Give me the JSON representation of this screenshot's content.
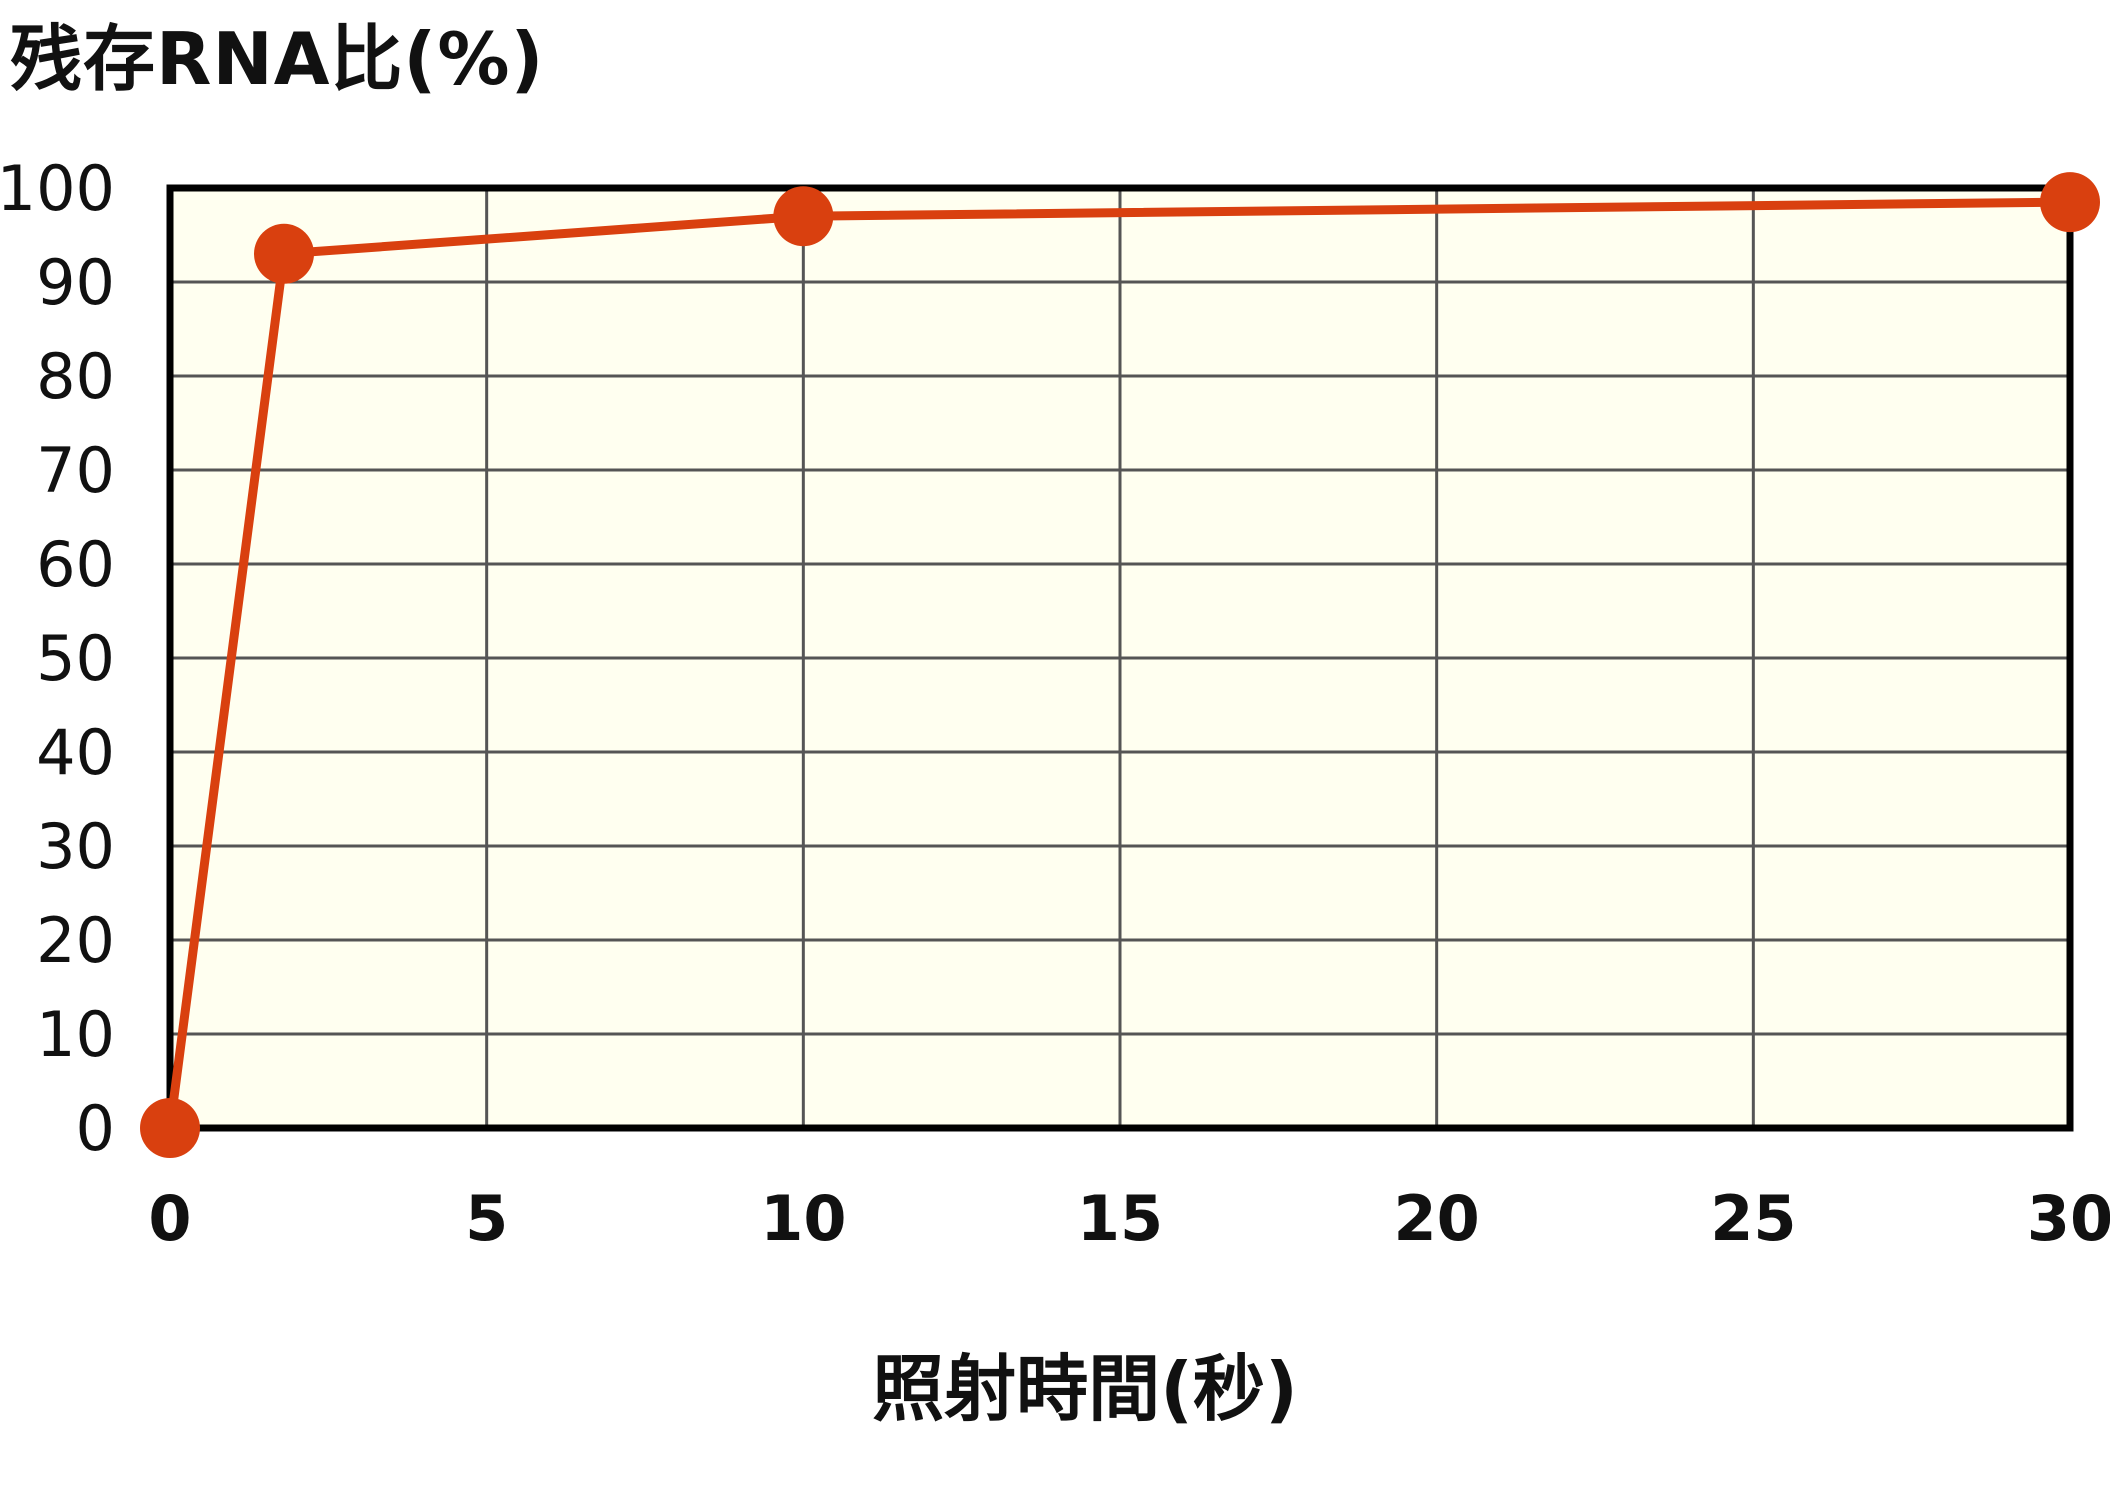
{
  "chart_data": {
    "type": "line",
    "ylabel": "残存RNA比(%)",
    "xlabel": "照射時間(秒)",
    "x_ticks": [
      "0",
      "5",
      "10",
      "15",
      "20",
      "25",
      "30"
    ],
    "y_ticks": [
      "0",
      "10",
      "20",
      "30",
      "40",
      "50",
      "60",
      "70",
      "80",
      "90",
      "100"
    ],
    "xlim": [
      0,
      30
    ],
    "ylim": [
      0,
      100
    ],
    "grid": true,
    "series": [
      {
        "x": [
          0,
          1.8,
          10,
          30
        ],
        "y": [
          0,
          93,
          97,
          98.5
        ]
      }
    ]
  },
  "colors": {
    "plot_background": "#fffff0",
    "series_line": "#d9400f",
    "marker": "#d9400f",
    "grid": "#555555",
    "frame": "#000000"
  }
}
